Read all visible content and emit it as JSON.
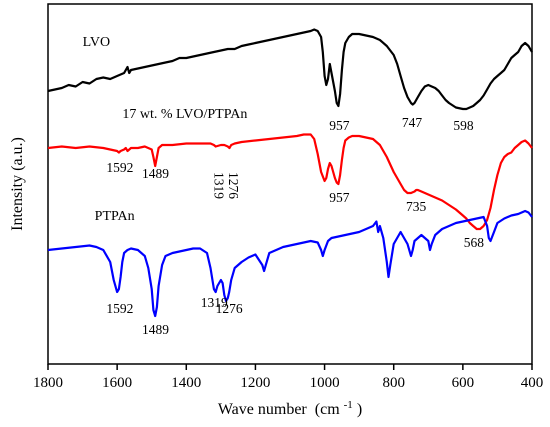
{
  "chart_data": {
    "type": "line",
    "title": "",
    "xlabel": "Wave number",
    "xlabel_unit": "(cm",
    "xlabel_sup": "-1",
    "xlabel_close": ")",
    "ylabel": "Intensity (a.u.)",
    "xlim": [
      1800,
      400
    ],
    "x_reversed": true,
    "y_ticks_shown": false,
    "grid": false,
    "x_ticks": [
      1800,
      1600,
      1400,
      1200,
      1000,
      800,
      600,
      400
    ],
    "x_tick_labels": [
      "1800",
      "1600",
      "1400",
      "1200",
      "1000",
      "800",
      "600",
      "400"
    ],
    "series": [
      {
        "name": "LVO",
        "color": "#000000",
        "x": [
          1800,
          1780,
          1760,
          1740,
          1720,
          1700,
          1680,
          1660,
          1640,
          1620,
          1600,
          1580,
          1570,
          1565,
          1560,
          1540,
          1520,
          1500,
          1480,
          1460,
          1440,
          1420,
          1400,
          1380,
          1360,
          1340,
          1320,
          1300,
          1280,
          1260,
          1240,
          1220,
          1200,
          1180,
          1160,
          1140,
          1120,
          1100,
          1080,
          1060,
          1040,
          1030,
          1020,
          1010,
          1005,
          1000,
          995,
          990,
          985,
          980,
          975,
          970,
          965,
          960,
          955,
          950,
          945,
          940,
          930,
          920,
          900,
          880,
          860,
          840,
          820,
          800,
          790,
          780,
          770,
          760,
          750,
          745,
          740,
          730,
          720,
          710,
          700,
          690,
          680,
          670,
          660,
          650,
          640,
          620,
          600,
          590,
          580,
          570,
          560,
          550,
          540,
          530,
          520,
          510,
          500,
          490,
          480,
          470,
          460,
          450,
          440,
          430,
          420,
          410,
          400
        ],
        "y": [
          71,
          71.5,
          72,
          73,
          72.5,
          74,
          73.5,
          75,
          75.5,
          75,
          76,
          77,
          79,
          77,
          78,
          78.5,
          79,
          79.5,
          80,
          80.5,
          81,
          82,
          82,
          82.5,
          83,
          83.5,
          84,
          84.5,
          85,
          85,
          86,
          86.5,
          87,
          87.5,
          88,
          88.5,
          89,
          89.5,
          90,
          90.5,
          91,
          91.5,
          91,
          89,
          84,
          76,
          73,
          75,
          80,
          77,
          74,
          71,
          67,
          66,
          70,
          78,
          84,
          87,
          89,
          90,
          90,
          89.5,
          89,
          88,
          86,
          83,
          80,
          76,
          72,
          69,
          67,
          66.5,
          67,
          69,
          71,
          72.5,
          73,
          72.5,
          72,
          71,
          69.5,
          68,
          67,
          65.5,
          65,
          65,
          65.5,
          66,
          67,
          68,
          69.5,
          71.5,
          73.5,
          75,
          76,
          77,
          78,
          80,
          82,
          83,
          84,
          86,
          87,
          86,
          84
        ]
      },
      {
        "name": "17 wt. % LVO/PTPAn",
        "color": "#ff0000",
        "x": [
          1800,
          1760,
          1720,
          1680,
          1640,
          1620,
          1600,
          1595,
          1590,
          1580,
          1575,
          1570,
          1560,
          1540,
          1520,
          1500,
          1495,
          1490,
          1485,
          1480,
          1470,
          1440,
          1400,
          1360,
          1330,
          1320,
          1315,
          1300,
          1290,
          1280,
          1275,
          1270,
          1260,
          1240,
          1200,
          1160,
          1120,
          1080,
          1060,
          1040,
          1030,
          1020,
          1010,
          1000,
          995,
          990,
          985,
          980,
          975,
          970,
          965,
          960,
          955,
          950,
          945,
          940,
          930,
          920,
          900,
          880,
          860,
          840,
          820,
          800,
          780,
          770,
          760,
          750,
          740,
          735,
          730,
          720,
          700,
          680,
          660,
          640,
          620,
          600,
          590,
          580,
          570,
          565,
          560,
          550,
          540,
          530,
          520,
          510,
          500,
          490,
          480,
          470,
          460,
          450,
          440,
          430,
          420,
          410,
          400
        ],
        "y": [
          52,
          52.5,
          52,
          52.5,
          52,
          51.5,
          51,
          50.5,
          51,
          51.5,
          52,
          51,
          52,
          52,
          52.5,
          51.5,
          49,
          46,
          49,
          52,
          53,
          53,
          53.5,
          53.5,
          53.5,
          53,
          52.5,
          53,
          53,
          52.5,
          52,
          53,
          53.5,
          54,
          54.5,
          55,
          55.5,
          56,
          56.5,
          56.5,
          55,
          50,
          44,
          41,
          42,
          45,
          47,
          46,
          44,
          42,
          40.5,
          40,
          43,
          48,
          52,
          54.5,
          55.5,
          56,
          56,
          55.5,
          55,
          53,
          49,
          44,
          40,
          38,
          37,
          37,
          37.5,
          38,
          38,
          37.5,
          36.5,
          35.5,
          34.5,
          33,
          31.5,
          29.5,
          28.5,
          27,
          26,
          25.5,
          25,
          25,
          26,
          28,
          32,
          38,
          43,
          47,
          49,
          50,
          50.5,
          52,
          53,
          54,
          54.5,
          53.5,
          52
        ]
      },
      {
        "name": "PTPAn",
        "color": "#0000ff",
        "x": [
          1800,
          1760,
          1720,
          1680,
          1660,
          1640,
          1620,
          1610,
          1600,
          1595,
          1590,
          1585,
          1580,
          1570,
          1560,
          1540,
          1520,
          1510,
          1500,
          1495,
          1490,
          1485,
          1480,
          1470,
          1460,
          1440,
          1420,
          1400,
          1380,
          1360,
          1340,
          1330,
          1320,
          1315,
          1310,
          1300,
          1295,
          1290,
          1285,
          1280,
          1276,
          1270,
          1260,
          1240,
          1220,
          1200,
          1180,
          1175,
          1170,
          1160,
          1140,
          1120,
          1100,
          1080,
          1060,
          1040,
          1020,
          1010,
          1005,
          1000,
          990,
          980,
          960,
          940,
          920,
          900,
          880,
          860,
          850,
          845,
          840,
          830,
          820,
          815,
          810,
          800,
          780,
          760,
          750,
          745,
          740,
          720,
          700,
          695,
          690,
          680,
          660,
          640,
          620,
          600,
          580,
          560,
          540,
          530,
          525,
          520,
          510,
          500,
          480,
          460,
          440,
          420,
          410,
          400
        ],
        "y": [
          18,
          18.5,
          19,
          19.5,
          19,
          18,
          14,
          8,
          4,
          5,
          9,
          14,
          17,
          18,
          18.5,
          18,
          16,
          12,
          5,
          -2,
          -4,
          -1,
          6,
          13,
          16,
          17,
          17.5,
          18,
          18.5,
          18.5,
          17,
          12,
          5,
          4,
          6,
          8,
          7,
          3,
          1,
          2,
          4,
          8,
          12,
          14,
          15.5,
          16.5,
          13,
          11,
          13,
          17,
          18,
          19,
          19.5,
          20,
          20.5,
          21,
          20.5,
          18,
          16,
          18,
          21,
          22,
          22.5,
          23,
          23.5,
          24,
          25,
          26,
          27.5,
          24,
          26,
          22,
          14,
          9,
          13,
          20,
          24,
          20,
          16,
          18,
          21,
          23,
          21,
          18,
          20,
          23,
          25,
          26,
          27,
          27.5,
          28,
          28.5,
          29,
          26,
          22,
          21,
          24,
          27,
          28.5,
          29.5,
          30,
          31,
          30.5,
          29
        ]
      }
    ],
    "series_labels": [
      {
        "text": "LVO",
        "x": 1700,
        "y": 86
      },
      {
        "text": "17 wt. % LVO/PTPAn",
        "x": 1585,
        "y": 62
      },
      {
        "text": "PTPAn",
        "x": 1665,
        "y": 28
      }
    ],
    "annotations": [
      {
        "text": "957",
        "x": 957,
        "y": 58,
        "rotate": false
      },
      {
        "text": "747",
        "x": 747,
        "y": 59,
        "rotate": false
      },
      {
        "text": "598",
        "x": 598,
        "y": 58,
        "rotate": false
      },
      {
        "text": "1592",
        "x": 1592,
        "y": 44,
        "rotate": false
      },
      {
        "text": "1489",
        "x": 1489,
        "y": 42,
        "rotate": false
      },
      {
        "text": "1319",
        "x": 1319,
        "y": 44,
        "rotate": true
      },
      {
        "text": "1276",
        "x": 1276,
        "y": 44,
        "rotate": true
      },
      {
        "text": "957",
        "x": 957,
        "y": 34,
        "rotate": false
      },
      {
        "text": "735",
        "x": 735,
        "y": 31,
        "rotate": false
      },
      {
        "text": "568",
        "x": 568,
        "y": 19,
        "rotate": false
      },
      {
        "text": "1592",
        "x": 1592,
        "y": -3,
        "rotate": false
      },
      {
        "text": "1489",
        "x": 1489,
        "y": -10,
        "rotate": false
      },
      {
        "text": "1319",
        "x": 1319,
        "y": -1,
        "rotate": false
      },
      {
        "text": "1276",
        "x": 1276,
        "y": -3,
        "rotate": false
      }
    ]
  }
}
